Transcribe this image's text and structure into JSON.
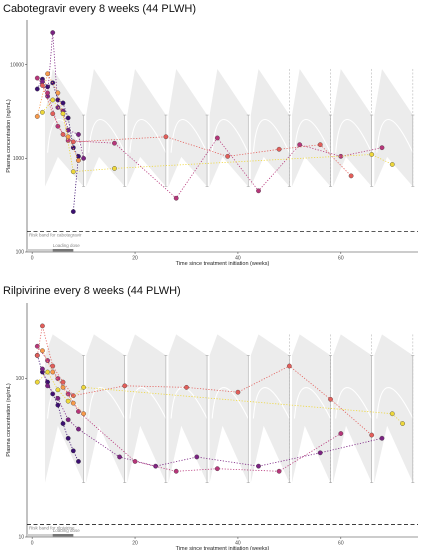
{
  "chart_data": [
    {
      "type": "scatter",
      "title": "Cabotegravir every 8 weeks (44 PLWH)",
      "xlabel": "Time since treatment initiation (weeks)",
      "ylabel": "Plasma concentration (ng/mL)",
      "xlim": [
        -1,
        75
      ],
      "ylim": [
        100,
        30000
      ],
      "yscale": "log",
      "xticks": [
        0,
        20,
        40,
        60
      ],
      "yticks": [
        100,
        1000,
        10000
      ],
      "ytick_labels": [
        "100",
        "1000",
        "10000"
      ],
      "threshold": 166,
      "threshold_label": "Risk band for cabotegravir",
      "loading_label": "Loading dose",
      "loading_bar": [
        0,
        8
      ],
      "band_peaks": [
        4,
        12,
        20,
        28,
        36,
        44,
        52,
        60,
        68
      ],
      "band": {
        "trough_median": 1150,
        "peak_median": 4700,
        "trough_low": 500,
        "peak_high": 9000,
        "trough_high": 2900
      },
      "series": [
        {
          "color": "#3b0f70",
          "points": [
            [
              1,
              5500
            ],
            [
              2,
              7000
            ],
            [
              3,
              5800
            ],
            [
              4,
              6400
            ],
            [
              5,
              4200
            ],
            [
              6,
              3900
            ],
            [
              7,
              2700
            ],
            [
              8,
              1300
            ],
            [
              9,
              1050
            ],
            [
              8,
              270
            ]
          ]
        },
        {
          "color": "#7b2382",
          "points": [
            [
              2,
              6600
            ],
            [
              3,
              4600
            ],
            [
              4,
              22000
            ],
            [
              5,
              3500
            ],
            [
              6,
              3200
            ],
            [
              7,
              2000
            ],
            [
              9,
              1800
            ],
            [
              10,
              1000
            ]
          ]
        },
        {
          "color": "#b7367a",
          "points": [
            [
              1,
              7200
            ],
            [
              3,
              5000
            ],
            [
              5,
              2200
            ],
            [
              7,
              1550
            ],
            [
              16,
              1450
            ],
            [
              28,
              375
            ],
            [
              36,
              1650
            ],
            [
              44,
              450
            ],
            [
              52,
              1400
            ],
            [
              60,
              1050
            ],
            [
              68,
              1300
            ]
          ]
        },
        {
          "color": "#e35e5a",
          "points": [
            [
              2,
              6000
            ],
            [
              4,
              3000
            ],
            [
              6,
              1800
            ],
            [
              8,
              1500
            ],
            [
              26,
              1700
            ],
            [
              38,
              1050
            ],
            [
              48,
              1250
            ],
            [
              56,
              1400
            ],
            [
              62,
              650
            ]
          ]
        },
        {
          "color": "#f99a4b",
          "points": [
            [
              1,
              2800
            ],
            [
              3,
              8000
            ],
            [
              5,
              5000
            ],
            [
              7,
              1700
            ],
            [
              9,
              950
            ]
          ]
        },
        {
          "color": "#eed73a",
          "points": [
            [
              2,
              3100
            ],
            [
              4,
              4200
            ],
            [
              6,
              3000
            ],
            [
              8,
              720
            ],
            [
              16,
              780
            ],
            [
              66,
              1100
            ],
            [
              70,
              860
            ]
          ]
        }
      ]
    },
    {
      "type": "scatter",
      "title": "Rilpivirine every 8 weeks (44 PLWH)",
      "xlabel": "Time since treatment initiation (weeks)",
      "ylabel": "Plasma concentration (ng/mL)",
      "xlim": [
        -1,
        75
      ],
      "ylim": [
        10,
        300
      ],
      "yscale": "log",
      "xticks": [
        0,
        20,
        40,
        60
      ],
      "yticks": [
        10,
        100
      ],
      "ytick_labels": [
        "10",
        "100"
      ],
      "threshold": 12,
      "threshold_label": "Risk band for rilpivirine",
      "loading_label": "Loading dose",
      "loading_bar": [
        0,
        8
      ],
      "band_peaks": [
        4,
        12,
        20,
        28,
        36,
        44,
        52,
        60,
        68
      ],
      "band": {
        "trough_median": 56,
        "peak_median": 110,
        "trough_low": 22,
        "peak_high": 190,
        "trough_high": 140
      },
      "series": [
        {
          "color": "#3b0f70",
          "points": [
            [
              1,
              140
            ],
            [
              2,
              110
            ],
            [
              3,
              95
            ],
            [
              4,
              80
            ],
            [
              5,
              68
            ],
            [
              6,
              52
            ],
            [
              7,
              42
            ],
            [
              8,
              35
            ],
            [
              9,
              30
            ]
          ]
        },
        {
          "color": "#7b2382",
          "points": [
            [
              2,
              115
            ],
            [
              3,
              90
            ],
            [
              5,
              75
            ],
            [
              7,
              55
            ],
            [
              9,
              48
            ],
            [
              17,
              32
            ],
            [
              24,
              28
            ],
            [
              32,
              32
            ],
            [
              44,
              28
            ],
            [
              56,
              34
            ],
            [
              68,
              42
            ]
          ]
        },
        {
          "color": "#b7367a",
          "points": [
            [
              1,
              160
            ],
            [
              3,
              130
            ],
            [
              5,
              100
            ],
            [
              7,
              80
            ],
            [
              9,
              62
            ],
            [
              20,
              30
            ],
            [
              28,
              26
            ],
            [
              36,
              27
            ],
            [
              48,
              26
            ],
            [
              60,
              45
            ]
          ]
        },
        {
          "color": "#e35e5a",
          "points": [
            [
              1,
              140
            ],
            [
              2,
              215
            ],
            [
              4,
              120
            ],
            [
              6,
              95
            ],
            [
              8,
              78
            ],
            [
              18,
              90
            ],
            [
              30,
              88
            ],
            [
              40,
              82
            ],
            [
              50,
              120
            ],
            [
              58,
              74
            ],
            [
              66,
              44
            ]
          ]
        },
        {
          "color": "#f99a4b",
          "points": [
            [
              2,
              150
            ],
            [
              4,
              110
            ],
            [
              6,
              88
            ],
            [
              8,
              70
            ],
            [
              10,
              60
            ]
          ]
        },
        {
          "color": "#eed73a",
          "points": [
            [
              1,
              95
            ],
            [
              3,
              110
            ],
            [
              5,
              85
            ],
            [
              7,
              72
            ],
            [
              10,
              88
            ],
            [
              70,
              60
            ],
            [
              72,
              52
            ]
          ]
        }
      ]
    }
  ]
}
